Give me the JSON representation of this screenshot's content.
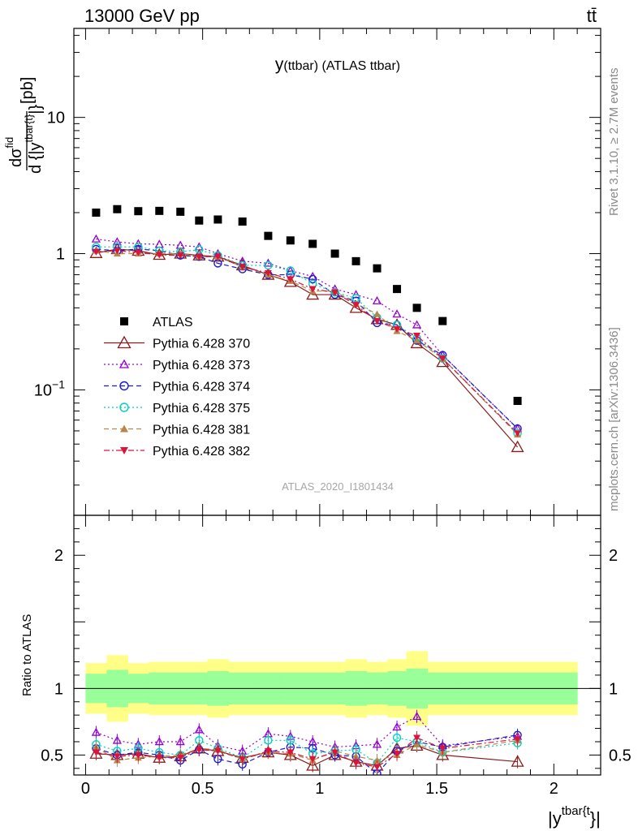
{
  "header": {
    "left": "13000 GeV pp",
    "right": "tt̄"
  },
  "side_labels": {
    "rivet": "Rivet 3.1.10, ≥ 2.7M events",
    "mcplots": "mcplots.cern.ch [arXiv:1306.3436]"
  },
  "chart_data": [
    {
      "type": "scatter",
      "panel": "main",
      "title": "y(ttbar) (ATLAS ttbar)",
      "title_main": "y",
      "title_sub": "(ttbar) (ATLAS ttbar)",
      "ylabel": "dσ^{fid} / d{|y^{tbar{t}}|} [pb]",
      "ylabel_parts": {
        "num": "dσ",
        "num_sup": "fid",
        "den": "d {|y",
        "den_sup": "tbar{t}",
        "den_tail": "|}",
        "unit": "[pb]"
      },
      "xlabel": "|y^{tbar{t}}|",
      "xlabel_parts": {
        "main": "|y",
        "sup": "tbar{t",
        "tail": "}|"
      },
      "yscale": "log",
      "ylim": [
        0.012,
        45
      ],
      "xlim": [
        -0.05,
        2.2
      ],
      "ytick_labels": [
        {
          "value": 10,
          "label": "10"
        },
        {
          "value": 1,
          "label": "1"
        },
        {
          "value": 0.1,
          "label": "10",
          "sup": "−1"
        }
      ],
      "x_edges": [
        0,
        0.09,
        0.18,
        0.27,
        0.36,
        0.45,
        0.52,
        0.61,
        0.73,
        0.83,
        0.92,
        1.02,
        1.11,
        1.2,
        1.29,
        1.37,
        1.46,
        1.59,
        2.1
      ],
      "x": [
        0.045,
        0.135,
        0.225,
        0.315,
        0.405,
        0.485,
        0.565,
        0.67,
        0.78,
        0.875,
        0.97,
        1.065,
        1.155,
        1.245,
        1.33,
        1.415,
        1.525,
        1.845
      ],
      "legend_position": "left-middle",
      "watermark": "ATLAS_2020_I1801434",
      "series": [
        {
          "name": "ATLAS",
          "color": "#000000",
          "marker": "square-filled",
          "line": "none",
          "values": [
            2.0,
            2.12,
            2.05,
            2.06,
            2.03,
            1.75,
            1.78,
            1.72,
            1.35,
            1.25,
            1.18,
            1.0,
            0.88,
            0.78,
            0.55,
            0.4,
            0.32,
            0.083
          ]
        },
        {
          "name": "Pythia 6.428 370",
          "color": "#8b1a1a",
          "marker": "triangle-open",
          "line": "solid",
          "values": [
            1.01,
            1.08,
            1.05,
            0.98,
            1.0,
            0.97,
            0.95,
            0.82,
            0.7,
            0.62,
            0.5,
            0.5,
            0.4,
            0.33,
            0.3,
            0.22,
            0.16,
            0.038
          ]
        },
        {
          "name": "Pythia 6.428 373",
          "color": "#9400d3",
          "marker": "triangle-open-small",
          "line": "dotted",
          "values": [
            1.28,
            1.22,
            1.18,
            1.17,
            1.15,
            1.12,
            1.0,
            0.88,
            0.85,
            0.75,
            0.68,
            0.55,
            0.5,
            0.45,
            0.36,
            0.3,
            0.18,
            0.052
          ]
        },
        {
          "name": "Pythia 6.428 374",
          "color": "#1a1acd",
          "marker": "circle-open",
          "line": "dashed",
          "values": [
            1.08,
            1.05,
            1.08,
            1.05,
            0.97,
            0.95,
            0.85,
            0.77,
            0.7,
            0.7,
            0.65,
            0.5,
            0.45,
            0.31,
            0.3,
            0.23,
            0.18,
            0.052
          ]
        },
        {
          "name": "Pythia 6.428 375",
          "color": "#00cfc0",
          "marker": "circle-open",
          "line": "dotted",
          "values": [
            1.12,
            1.12,
            1.12,
            1.05,
            1.03,
            1.07,
            0.97,
            0.82,
            0.82,
            0.75,
            0.6,
            0.52,
            0.47,
            0.34,
            0.3,
            0.24,
            0.17,
            0.048
          ]
        },
        {
          "name": "Pythia 6.428 381",
          "color": "#b8864b",
          "marker": "triangle-filled",
          "line": "dashed",
          "values": [
            1.05,
            1.0,
            1.0,
            1.0,
            1.0,
            0.95,
            0.95,
            0.8,
            0.7,
            0.63,
            0.53,
            0.53,
            0.43,
            0.36,
            0.27,
            0.23,
            0.17,
            0.047
          ]
        },
        {
          "name": "Pythia 6.428 382",
          "color": "#dc143c",
          "marker": "triangle-down-filled",
          "line": "dashdot",
          "values": [
            1.03,
            1.05,
            1.02,
            0.98,
            0.97,
            0.95,
            0.95,
            0.8,
            0.72,
            0.65,
            0.55,
            0.52,
            0.42,
            0.32,
            0.28,
            0.25,
            0.17,
            0.048
          ]
        }
      ]
    },
    {
      "type": "scatter",
      "panel": "ratio",
      "ylabel": "Ratio to ATLAS",
      "ylim": [
        0.35,
        2.3
      ],
      "xlim": [
        -0.05,
        2.2
      ],
      "ytick_labels": [
        {
          "value": 2,
          "label": "2"
        },
        {
          "value": 1,
          "label": "1"
        },
        {
          "value": 0.5,
          "label": "0.5"
        }
      ],
      "xtick_labels": [
        {
          "value": 0,
          "label": "0"
        },
        {
          "value": 0.5,
          "label": "0.5"
        },
        {
          "value": 1,
          "label": "1"
        },
        {
          "value": 1.5,
          "label": "1.5"
        },
        {
          "value": 2,
          "label": "2"
        }
      ],
      "reference_line": 1,
      "band_colors": {
        "outer": "#ffff88",
        "inner": "#99ff99"
      },
      "band_outer_half": [
        0.19,
        0.25,
        0.19,
        0.2,
        0.2,
        0.2,
        0.22,
        0.2,
        0.2,
        0.2,
        0.2,
        0.2,
        0.22,
        0.2,
        0.22,
        0.28,
        0.2,
        0.2
      ],
      "band_inner_half": [
        0.11,
        0.14,
        0.11,
        0.12,
        0.12,
        0.12,
        0.13,
        0.12,
        0.12,
        0.12,
        0.12,
        0.12,
        0.13,
        0.12,
        0.13,
        0.15,
        0.12,
        0.12
      ],
      "series": [
        {
          "name": "Pythia 6.428 370",
          "color": "#8b1a1a",
          "values": [
            0.51,
            0.5,
            0.51,
            0.48,
            0.49,
            0.55,
            0.53,
            0.48,
            0.52,
            0.5,
            0.42,
            0.5,
            0.45,
            0.42,
            0.55,
            0.57,
            0.5,
            0.45
          ]
        },
        {
          "name": "Pythia 6.428 373",
          "color": "#9400d3",
          "values": [
            0.67,
            0.61,
            0.58,
            0.6,
            0.6,
            0.69,
            0.57,
            0.53,
            0.66,
            0.64,
            0.6,
            0.56,
            0.57,
            0.58,
            0.71,
            0.79,
            0.57,
            0.64
          ]
        },
        {
          "name": "Pythia 6.428 374",
          "color": "#1a1acd",
          "values": [
            0.55,
            0.5,
            0.52,
            0.5,
            0.46,
            0.54,
            0.47,
            0.43,
            0.52,
            0.56,
            0.55,
            0.5,
            0.49,
            0.36,
            0.53,
            0.6,
            0.56,
            0.65
          ]
        },
        {
          "name": "Pythia 6.428 375",
          "color": "#00cfc0",
          "values": [
            0.58,
            0.53,
            0.55,
            0.52,
            0.5,
            0.61,
            0.55,
            0.48,
            0.61,
            0.61,
            0.51,
            0.53,
            0.54,
            0.44,
            0.63,
            0.6,
            0.52,
            0.59
          ]
        },
        {
          "name": "Pythia 6.428 381",
          "color": "#b8864b",
          "values": [
            0.56,
            0.46,
            0.48,
            0.49,
            0.5,
            0.55,
            0.54,
            0.47,
            0.52,
            0.51,
            0.46,
            0.53,
            0.49,
            0.46,
            0.5,
            0.58,
            0.52,
            0.61
          ]
        },
        {
          "name": "Pythia 6.428 382",
          "color": "#dc143c",
          "values": [
            0.52,
            0.49,
            0.5,
            0.48,
            0.48,
            0.54,
            0.53,
            0.47,
            0.53,
            0.52,
            0.47,
            0.52,
            0.44,
            0.41,
            0.51,
            0.63,
            0.55,
            0.62
          ]
        }
      ]
    }
  ]
}
